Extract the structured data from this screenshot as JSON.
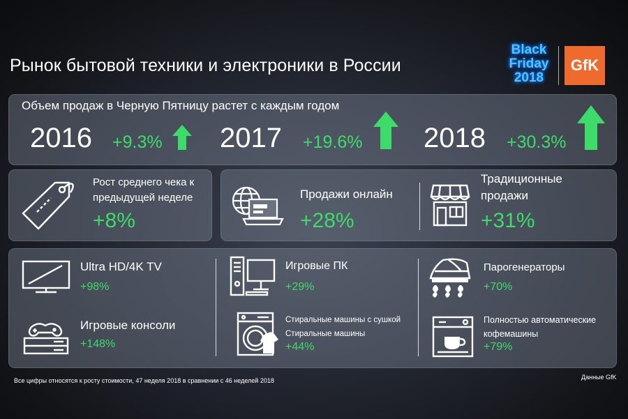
{
  "title": "Рынок бытовой техники и электроники в России",
  "logo": {
    "bf_line1": "Black",
    "bf_line2": "Friday",
    "bf_line3": "2018",
    "gfk": "GfK",
    "bf_color": "#4fc3ff",
    "gfk_color": "#ef6b2d"
  },
  "growth": {
    "heading": "Объем продаж в Черную Пятницу растет с каждым годом",
    "years": [
      {
        "year": "2016",
        "pct": "+9.3%"
      },
      {
        "year": "2017",
        "pct": "+19.6%"
      },
      {
        "year": "2018",
        "pct": "+30.3%"
      }
    ]
  },
  "avg_check": {
    "label_line1": "Рост среднего чека к",
    "label_line2": "предыдущей неделе",
    "value": "+8%"
  },
  "channels": {
    "online": {
      "label": "Продажи онлайн",
      "value": "+28%"
    },
    "offline": {
      "label_line1": "Традиционные",
      "label_line2": "продажи",
      "value": "+31%"
    }
  },
  "categories": {
    "tv": {
      "label": "Ultra HD/4K TV",
      "value": "+98%"
    },
    "consoles": {
      "label": "Игровые консоли",
      "value": "+148%"
    },
    "gaming_pc": {
      "label": "Игровые ПК",
      "value": "+29%"
    },
    "washers": {
      "label_line1": "Стиральные машины с сушкой",
      "label_line2": "Стиральные машины",
      "value": "+44%"
    },
    "steam": {
      "label": "Парогенераторы",
      "value": "+70%"
    },
    "coffee": {
      "label_line1": "Полностью автоматические",
      "label_line2": "кофемашины",
      "value": "+79%"
    }
  },
  "footnote": "Все цифры относятся к росту стоимости, 47 неделя 2018 в сравнении с 46 неделей 2018",
  "source": "Данные GfK",
  "accent_green": "#3ddc6a"
}
